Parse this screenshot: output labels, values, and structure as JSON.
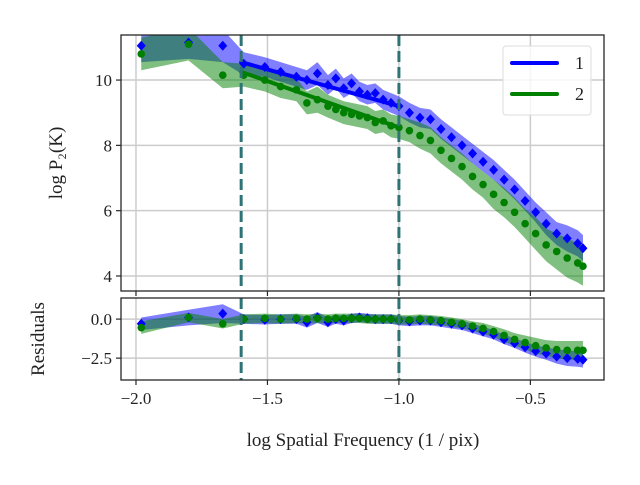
{
  "chart_data": [
    {
      "type": "line",
      "panel": "main",
      "ylabel": "log P₂(K)",
      "xlim": [
        -2.057,
        -0.22
      ],
      "ylim": [
        3.54,
        11.38
      ],
      "xticks": [
        -2.0,
        -1.5,
        -1.0,
        -0.5
      ],
      "yticks": [
        4,
        6,
        8,
        10
      ],
      "ytick_labels": [
        "4",
        "6",
        "8",
        "10"
      ],
      "grid": true,
      "legend": "top-right",
      "vlines": [
        -1.6,
        -1.0
      ],
      "x": [
        -1.98,
        -1.8,
        -1.67,
        -1.59,
        -1.51,
        -1.45,
        -1.39,
        -1.35,
        -1.31,
        -1.27,
        -1.24,
        -1.21,
        -1.18,
        -1.15,
        -1.12,
        -1.09,
        -1.06,
        -1.03,
        -1.0,
        -0.96,
        -0.92,
        -0.88,
        -0.84,
        -0.8,
        -0.76,
        -0.72,
        -0.68,
        -0.64,
        -0.6,
        -0.56,
        -0.52,
        -0.48,
        -0.44,
        -0.4,
        -0.36,
        -0.32,
        -0.3
      ],
      "series": [
        {
          "name": "1",
          "color": "#0000ff",
          "marker": "diamond",
          "y": [
            11.05,
            11.15,
            11.05,
            10.5,
            10.4,
            10.25,
            10.1,
            10.0,
            10.2,
            9.85,
            10.05,
            9.75,
            9.9,
            9.65,
            9.55,
            9.6,
            9.4,
            9.3,
            9.2,
            9.0,
            8.85,
            8.8,
            8.5,
            8.25,
            8.0,
            7.75,
            7.5,
            7.25,
            6.95,
            6.65,
            6.3,
            5.95,
            5.6,
            5.3,
            5.15,
            5.0,
            4.85
          ],
          "err": [
            0.5,
            0.5,
            0.5,
            0.35,
            0.3,
            0.3,
            0.3,
            0.3,
            0.35,
            0.3,
            0.3,
            0.3,
            0.3,
            0.3,
            0.3,
            0.3,
            0.3,
            0.3,
            0.3,
            0.3,
            0.3,
            0.3,
            0.3,
            0.3,
            0.3,
            0.3,
            0.3,
            0.3,
            0.3,
            0.3,
            0.3,
            0.3,
            0.35,
            0.35,
            0.4,
            0.4,
            0.4
          ],
          "fit": {
            "x": [
              -1.6,
              -1.0
            ],
            "y": [
              10.55,
              9.2
            ]
          }
        },
        {
          "name": "2",
          "color": "#008000",
          "marker": "circle",
          "y": [
            10.8,
            11.1,
            10.15,
            10.15,
            10.0,
            9.8,
            9.7,
            9.3,
            9.4,
            9.2,
            9.1,
            9.0,
            8.95,
            8.9,
            8.85,
            8.7,
            8.75,
            8.6,
            8.55,
            8.45,
            8.3,
            8.15,
            7.85,
            7.6,
            7.35,
            7.05,
            6.8,
            6.5,
            6.25,
            5.95,
            5.6,
            5.3,
            4.95,
            4.75,
            4.55,
            4.4,
            4.3
          ],
          "err": [
            0.5,
            0.5,
            0.4,
            0.35,
            0.35,
            0.35,
            0.35,
            0.35,
            0.4,
            0.35,
            0.35,
            0.35,
            0.35,
            0.35,
            0.35,
            0.35,
            0.35,
            0.35,
            0.35,
            0.35,
            0.4,
            0.4,
            0.4,
            0.4,
            0.4,
            0.4,
            0.4,
            0.45,
            0.45,
            0.45,
            0.45,
            0.5,
            0.5,
            0.55,
            0.6,
            0.6,
            0.6
          ],
          "fit": {
            "x": [
              -1.6,
              -1.0
            ],
            "y": [
              10.25,
              8.55
            ]
          }
        }
      ]
    },
    {
      "type": "line",
      "panel": "residuals",
      "ylabel": "Residuals",
      "xlabel": "log Spatial Frequency (1 / pix)",
      "xlim": [
        -2.057,
        -0.22
      ],
      "ylim": [
        -3.9,
        1.35
      ],
      "xticks": [
        -2.0,
        -1.5,
        -1.0,
        -0.5
      ],
      "xtick_labels": [
        "−2.0",
        "−1.5",
        "−1.0",
        "−0.5"
      ],
      "yticks": [
        0.0,
        -2.5
      ],
      "ytick_labels": [
        "0.0",
        "−2.5"
      ],
      "grid": true,
      "vlines": [
        -1.6,
        -1.0
      ],
      "x": [
        -1.98,
        -1.8,
        -1.67,
        -1.59,
        -1.51,
        -1.45,
        -1.39,
        -1.35,
        -1.31,
        -1.27,
        -1.24,
        -1.21,
        -1.18,
        -1.15,
        -1.12,
        -1.09,
        -1.06,
        -1.03,
        -1.0,
        -0.96,
        -0.92,
        -0.88,
        -0.84,
        -0.8,
        -0.76,
        -0.72,
        -0.68,
        -0.64,
        -0.6,
        -0.56,
        -0.52,
        -0.48,
        -0.44,
        -0.4,
        -0.36,
        -0.32,
        -0.3
      ],
      "series": [
        {
          "name": "1",
          "color": "#0000ff",
          "marker": "diamond",
          "y": [
            -0.3,
            0.1,
            0.35,
            0.0,
            -0.05,
            0.0,
            0.0,
            -0.2,
            0.1,
            -0.2,
            0.0,
            -0.1,
            0.05,
            0.1,
            0.05,
            0.0,
            0.0,
            0.0,
            -0.1,
            -0.15,
            -0.1,
            -0.1,
            -0.2,
            -0.3,
            -0.4,
            -0.6,
            -0.8,
            -1.0,
            -1.3,
            -1.55,
            -1.8,
            -2.05,
            -2.2,
            -2.4,
            -2.5,
            -2.55,
            -2.6
          ],
          "err": [
            0.4,
            0.5,
            0.6,
            0.3,
            0.3,
            0.3,
            0.3,
            0.35,
            0.35,
            0.3,
            0.3,
            0.3,
            0.3,
            0.3,
            0.3,
            0.3,
            0.3,
            0.3,
            0.3,
            0.3,
            0.3,
            0.3,
            0.3,
            0.3,
            0.3,
            0.3,
            0.3,
            0.3,
            0.3,
            0.3,
            0.35,
            0.35,
            0.4,
            0.45,
            0.5,
            0.5,
            0.5
          ]
        },
        {
          "name": "2",
          "color": "#008000",
          "marker": "circle",
          "y": [
            -0.55,
            0.1,
            -0.3,
            0.0,
            0.05,
            0.0,
            0.05,
            0.0,
            0.05,
            0.0,
            0.05,
            0.05,
            0.05,
            0.05,
            0.0,
            0.0,
            0.0,
            0.0,
            -0.05,
            -0.05,
            0.0,
            -0.05,
            -0.1,
            -0.2,
            -0.3,
            -0.45,
            -0.6,
            -0.8,
            -1.05,
            -1.3,
            -1.5,
            -1.7,
            -1.85,
            -1.95,
            -2.0,
            -2.0,
            -2.0
          ],
          "err": [
            0.4,
            0.3,
            0.3,
            0.3,
            0.3,
            0.3,
            0.3,
            0.3,
            0.3,
            0.3,
            0.3,
            0.3,
            0.3,
            0.3,
            0.3,
            0.3,
            0.3,
            0.3,
            0.3,
            0.3,
            0.3,
            0.3,
            0.3,
            0.3,
            0.3,
            0.3,
            0.35,
            0.35,
            0.4,
            0.4,
            0.45,
            0.5,
            0.5,
            0.55,
            0.6,
            0.6,
            0.6
          ]
        }
      ]
    }
  ],
  "colors": {
    "vline": "#2f7474",
    "grid": "#cccccc",
    "axes": "#262626"
  }
}
